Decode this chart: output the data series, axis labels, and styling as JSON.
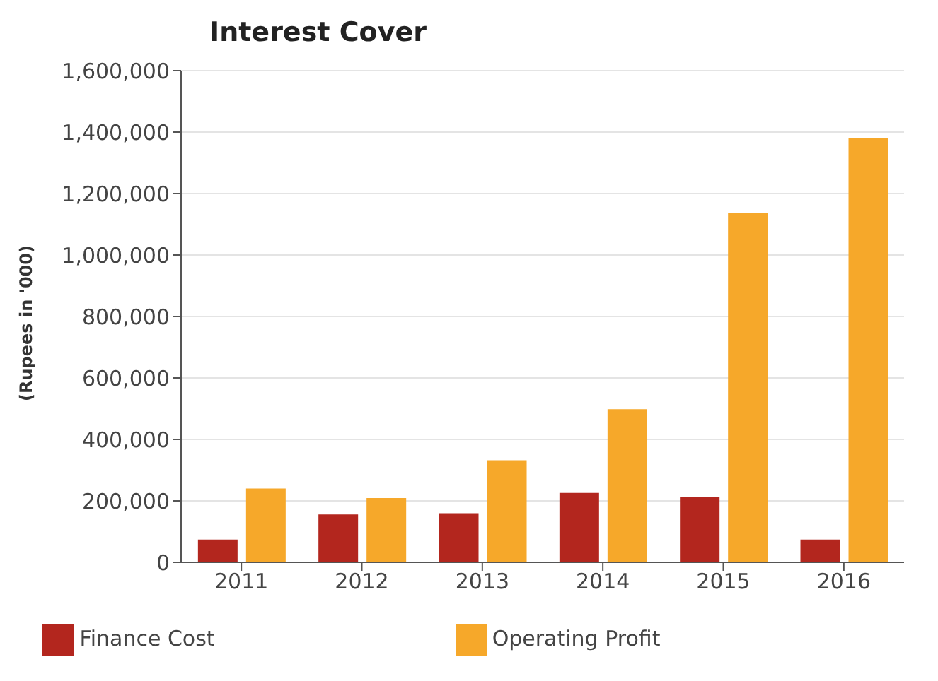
{
  "chart_data": {
    "type": "bar",
    "title": "Interest Cover",
    "ylabel": "(Rupees in '000)",
    "categories": [
      "2011",
      "2012",
      "2013",
      "2014",
      "2015",
      "2016"
    ],
    "series": [
      {
        "name": "Finance Cost",
        "color": "#b3261e",
        "values": [
          74000,
          156000,
          160000,
          226000,
          213000,
          74000
        ]
      },
      {
        "name": "Operating Profit",
        "color": "#f6a82a",
        "values": [
          240000,
          209000,
          332000,
          498000,
          1136000,
          1381000
        ]
      }
    ],
    "ylim": [
      0,
      1600000
    ],
    "yticks": [
      0,
      {
        "value": 200000,
        "label": "200,000"
      },
      {
        "value": 400000,
        "label": "400,000"
      },
      {
        "value": 600000,
        "label": "600,000"
      },
      {
        "value": 800000,
        "label": "800,000"
      },
      {
        "value": 1000000,
        "label": "1,000,000"
      },
      {
        "value": 1200000,
        "label": "1,200,000"
      },
      {
        "value": 1400000,
        "label": "1,400,000"
      },
      {
        "value": 1600000,
        "label": "1,600,000"
      }
    ],
    "grid": "y",
    "legend": "bottom"
  }
}
